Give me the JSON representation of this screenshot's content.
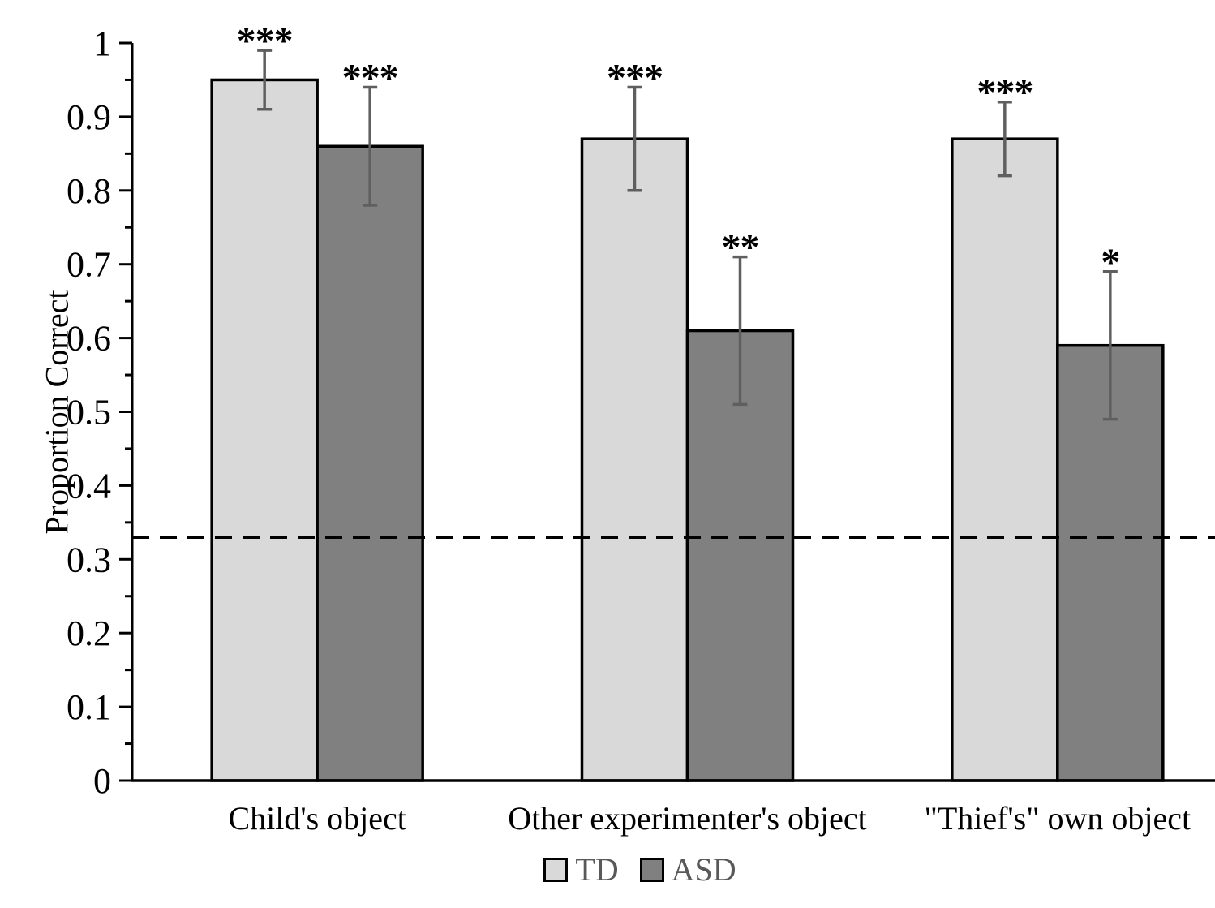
{
  "chart_data": {
    "type": "bar",
    "title": "",
    "xlabel": "",
    "ylabel": "Proportion Correct",
    "categories": [
      "Child's object",
      "Other experimenter's object",
      "\"Thief's\" own object"
    ],
    "series": [
      {
        "name": "TD",
        "color": "#d9d9d9",
        "values": [
          0.95,
          0.87,
          0.87
        ],
        "errors": [
          0.04,
          0.07,
          0.05
        ],
        "significance": [
          "***",
          "***",
          "***"
        ]
      },
      {
        "name": "ASD",
        "color": "#808080",
        "values": [
          0.86,
          0.61,
          0.59
        ],
        "errors": [
          0.08,
          0.1,
          0.1
        ],
        "significance": [
          "***",
          "**",
          "*"
        ]
      }
    ],
    "ylim": [
      0,
      1
    ],
    "ytick_labels": [
      "0",
      "0.1",
      "0.2",
      "0.3",
      "0.4",
      "0.5",
      "0.6",
      "0.7",
      "0.8",
      "0.9",
      "1"
    ],
    "minor_tick_step": 0.05,
    "reference_line": {
      "value": 0.33,
      "style": "dashed"
    },
    "legend_position": "bottom",
    "grid": false,
    "colors": {
      "axis": "#000000",
      "bar_border": "#000000",
      "error_bar": "#5f5f5f",
      "legend_text": "#595959",
      "significance": "#000000"
    }
  }
}
